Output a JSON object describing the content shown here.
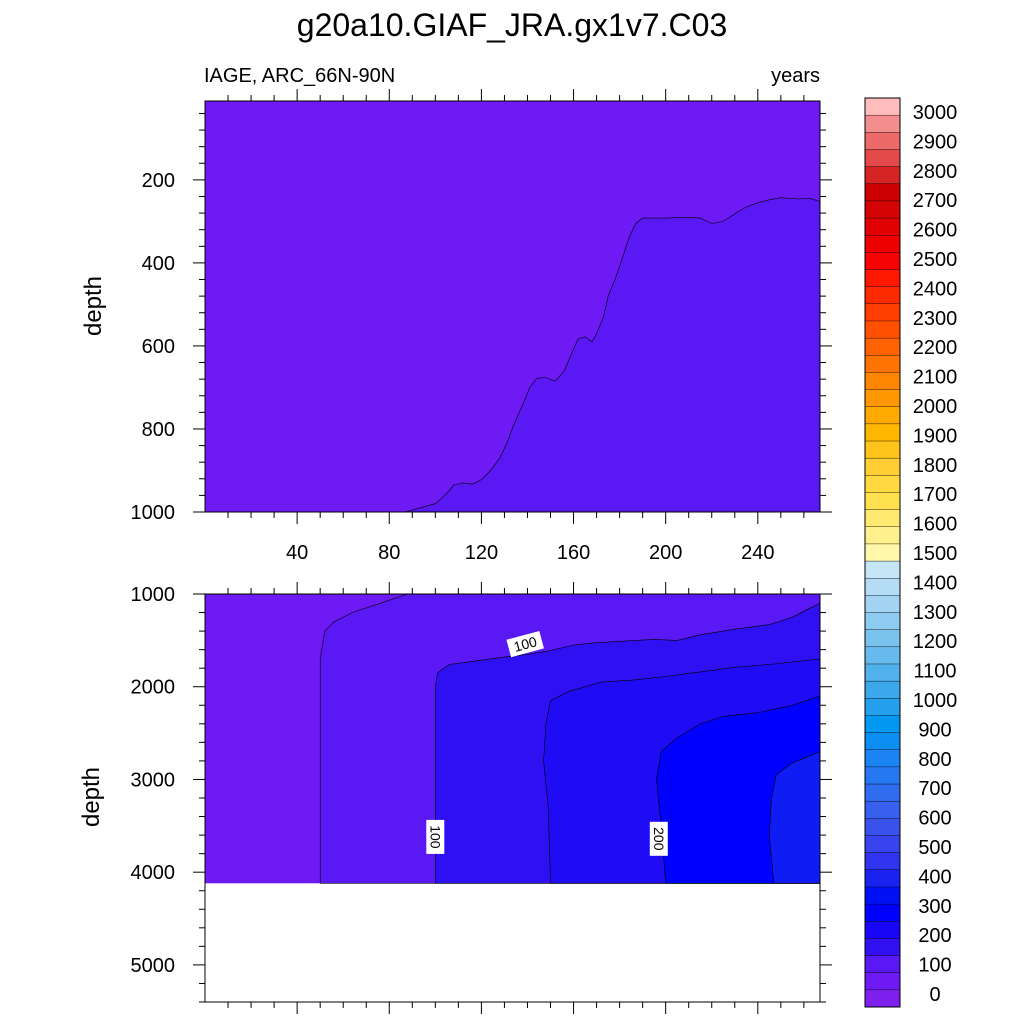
{
  "chart_data": {
    "type": "contour",
    "title": "g20a10.GIAF_JRA.gx1v7.C03",
    "left_subtitle": "IAGE, ARC_66N-90N",
    "right_subtitle": "years",
    "xlabel": "",
    "ylabel": "depth",
    "x_range": [
      0,
      267
    ],
    "x_ticks": [
      40,
      80,
      120,
      160,
      200,
      240
    ],
    "panels": [
      {
        "id": "upper",
        "y_range": [
          10,
          1000
        ],
        "y_ticks": [
          200,
          400,
          600,
          800,
          1000
        ],
        "y_inverted": true,
        "regions": [
          {
            "color": "#5a18f4",
            "range": "50-100 yrs",
            "boundary": [
              [
                87,
                1000
              ],
              [
                92,
                992
              ],
              [
                100,
                980
              ],
              [
                105,
                955
              ],
              [
                108,
                935
              ],
              [
                112,
                930
              ],
              [
                116,
                933
              ],
              [
                120,
                922
              ],
              [
                124,
                900
              ],
              [
                128,
                870
              ],
              [
                131,
                835
              ],
              [
                134,
                790
              ],
              [
                138,
                740
              ],
              [
                141,
                700
              ],
              [
                144,
                678
              ],
              [
                148,
                676
              ],
              [
                152,
                685
              ],
              [
                156,
                660
              ],
              [
                159,
                620
              ],
              [
                162,
                583
              ],
              [
                165,
                578
              ],
              [
                168,
                590
              ],
              [
                170,
                570
              ],
              [
                173,
                530
              ],
              [
                175,
                480
              ],
              [
                178,
                440
              ],
              [
                181,
                392
              ],
              [
                184,
                340
              ],
              [
                187,
                305
              ],
              [
                190,
                292
              ],
              [
                200,
                292
              ],
              [
                210,
                290
              ],
              [
                215,
                292
              ],
              [
                220,
                305
              ],
              [
                225,
                300
              ],
              [
                230,
                282
              ],
              [
                235,
                265
              ],
              [
                240,
                255
              ],
              [
                245,
                248
              ],
              [
                250,
                243
              ],
              [
                258,
                246
              ],
              [
                262,
                244
              ],
              [
                267,
                252
              ],
              [
                267,
                1000
              ]
            ]
          }
        ],
        "background_color": "#6e1af4"
      },
      {
        "id": "lower",
        "y_range": [
          1000,
          5400
        ],
        "y_ticks": [
          1000,
          2000,
          3000,
          4000,
          5000
        ],
        "y_inverted": true,
        "data_bottom": 4120,
        "background_color": "#6e1af4",
        "regions": [
          {
            "color": "#5a18f4",
            "range": "50-100 yrs",
            "boundary": [
              [
                50,
                4120
              ],
              [
                50,
                1700
              ],
              [
                52,
                1400
              ],
              [
                56,
                1300
              ],
              [
                64,
                1200
              ],
              [
                76,
                1100
              ],
              [
                88,
                1000
              ],
              [
                267,
                1000
              ],
              [
                267,
                4120
              ]
            ]
          },
          {
            "color": "#2f10f2",
            "range": "100-150 yrs",
            "boundary": [
              [
                100,
                4120
              ],
              [
                100,
                2000
              ],
              [
                101,
                1850
              ],
              [
                106,
                1760
              ],
              [
                115,
                1730
              ],
              [
                130,
                1680
              ],
              [
                140,
                1650
              ],
              [
                150,
                1610
              ],
              [
                160,
                1550
              ],
              [
                168,
                1530
              ],
              [
                180,
                1510
              ],
              [
                195,
                1490
              ],
              [
                205,
                1500
              ],
              [
                215,
                1440
              ],
              [
                230,
                1380
              ],
              [
                245,
                1330
              ],
              [
                255,
                1250
              ],
              [
                262,
                1160
              ],
              [
                267,
                1100
              ],
              [
                267,
                4120
              ]
            ]
          },
          {
            "color": "#1f0cf5",
            "range": "150-200 yrs",
            "boundary": [
              [
                150,
                4120
              ],
              [
                149,
                3300
              ],
              [
                147,
                2800
              ],
              [
                148,
                2400
              ],
              [
                150,
                2150
              ],
              [
                158,
                2050
              ],
              [
                172,
                1950
              ],
              [
                185,
                1930
              ],
              [
                200,
                1890
              ],
              [
                215,
                1840
              ],
              [
                230,
                1790
              ],
              [
                245,
                1760
              ],
              [
                267,
                1700
              ],
              [
                267,
                4120
              ]
            ]
          },
          {
            "color": "#0000ff",
            "range": "200-250 yrs",
            "boundary": [
              [
                200,
                4120
              ],
              [
                198,
                3500
              ],
              [
                196,
                3000
              ],
              [
                198,
                2700
              ],
              [
                205,
                2550
              ],
              [
                215,
                2400
              ],
              [
                225,
                2320
              ],
              [
                240,
                2280
              ],
              [
                255,
                2200
              ],
              [
                267,
                2100
              ],
              [
                267,
                4120
              ]
            ]
          },
          {
            "color": "#0f1cf4",
            "range": "250-300 yrs",
            "boundary": [
              [
                247,
                4120
              ],
              [
                245,
                3600
              ],
              [
                246,
                3200
              ],
              [
                248,
                2950
              ],
              [
                255,
                2820
              ],
              [
                262,
                2750
              ],
              [
                267,
                2700
              ],
              [
                267,
                4120
              ]
            ]
          }
        ]
      }
    ],
    "contour_labels": [
      {
        "panel": "lower",
        "text": "100",
        "x": 139,
        "y": 1540,
        "rotation": -15
      },
      {
        "panel": "lower",
        "text": "100",
        "x": 100,
        "y": 3620,
        "rotation": 90
      },
      {
        "panel": "lower",
        "text": "200",
        "x": 197,
        "y": 3640,
        "rotation": 90
      }
    ],
    "colorbar": {
      "labels": [
        "3000",
        "2900",
        "2800",
        "2700",
        "2600",
        "2500",
        "2400",
        "2300",
        "2200",
        "2100",
        "2000",
        "1900",
        "1800",
        "1700",
        "1600",
        "1500",
        "1400",
        "1300",
        "1200",
        "1100",
        "1000",
        "900",
        "800",
        "700",
        "600",
        "500",
        "400",
        "300",
        "200",
        "100",
        "0"
      ],
      "colors": [
        "#ffbdbd",
        "#f48d8d",
        "#ec6a6a",
        "#e54a4a",
        "#d62424",
        "#cc0000",
        "#d40404",
        "#e00202",
        "#ec0000",
        "#f60404",
        "#ff1800",
        "#ff2b00",
        "#ff3e00",
        "#ff5000",
        "#ff6200",
        "#ff7400",
        "#ff8600",
        "#ff9800",
        "#ffaa00",
        "#ffb700",
        "#ffc31a",
        "#ffce34",
        "#ffd93f",
        "#ffe04f",
        "#ffe970",
        "#fff08e",
        "#fff7aa",
        "#c6e5f7",
        "#b4dcf4",
        "#a2d4f2",
        "#8ecbf0",
        "#7bc3ef",
        "#66baee",
        "#50b1ed",
        "#3ca8ec",
        "#25a0ee",
        "#0098f0",
        "#0c8ef2",
        "#1a84f2",
        "#2678f2",
        "#306cf0",
        "#3860ee",
        "#3a52ec",
        "#3844ee",
        "#2f34f0",
        "#1a22f2",
        "#0010f5",
        "#0000ff",
        "#1a06f6",
        "#3210f2",
        "#5a18f4",
        "#6e1af4",
        "#7d20ee"
      ]
    }
  }
}
